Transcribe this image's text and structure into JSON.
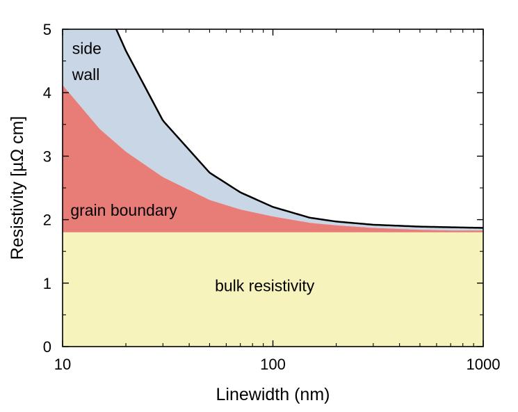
{
  "chart_data": {
    "type": "area",
    "xlabel": "Linewidth (nm)",
    "ylabel": "Resistivity [µΩ cm]",
    "xscale": "log",
    "xlim": [
      10,
      1000
    ],
    "ylim": [
      0,
      5
    ],
    "x_ticks": [
      10,
      100,
      1000
    ],
    "x_tick_labels": [
      "10",
      "100",
      "1000"
    ],
    "y_ticks": [
      0,
      1,
      2,
      3,
      4,
      5
    ],
    "y_tick_labels": [
      "0",
      "1",
      "2",
      "3",
      "4",
      "5"
    ],
    "grid": false,
    "legend": "none",
    "series": [
      {
        "name": "bulk resistivity",
        "kind": "constant",
        "color": "#f7f3bd",
        "x": [
          10,
          1000
        ],
        "y": [
          1.8,
          1.8
        ]
      },
      {
        "name": "grain boundary",
        "color": "#e87c77",
        "x": [
          10,
          15,
          20,
          30,
          50,
          70,
          100,
          150,
          200,
          300,
          500,
          700,
          1000
        ],
        "y": [
          4.12,
          3.43,
          3.07,
          2.67,
          2.31,
          2.16,
          2.05,
          1.95,
          1.91,
          1.87,
          1.84,
          1.83,
          1.83
        ]
      },
      {
        "name": "side wall",
        "color": "#c9d6e6",
        "line_color": "#000000",
        "x": [
          18,
          20,
          30,
          50,
          70,
          100,
          150,
          200,
          300,
          500,
          700,
          1000
        ],
        "y": [
          5.0,
          4.66,
          3.56,
          2.74,
          2.43,
          2.2,
          2.03,
          1.97,
          1.92,
          1.89,
          1.88,
          1.87
        ]
      }
    ],
    "annotations": [
      {
        "id": "side_wall_1",
        "text": "side",
        "x": 11.1,
        "y": 4.61
      },
      {
        "id": "side_wall_2",
        "text": "wall",
        "x": 11.1,
        "y": 4.2
      },
      {
        "id": "grain_boundary",
        "text": "grain boundary",
        "x": 10.9,
        "y": 2.06
      },
      {
        "id": "bulk",
        "text": "bulk resistivity",
        "x": 53,
        "y": 0.87
      }
    ]
  }
}
